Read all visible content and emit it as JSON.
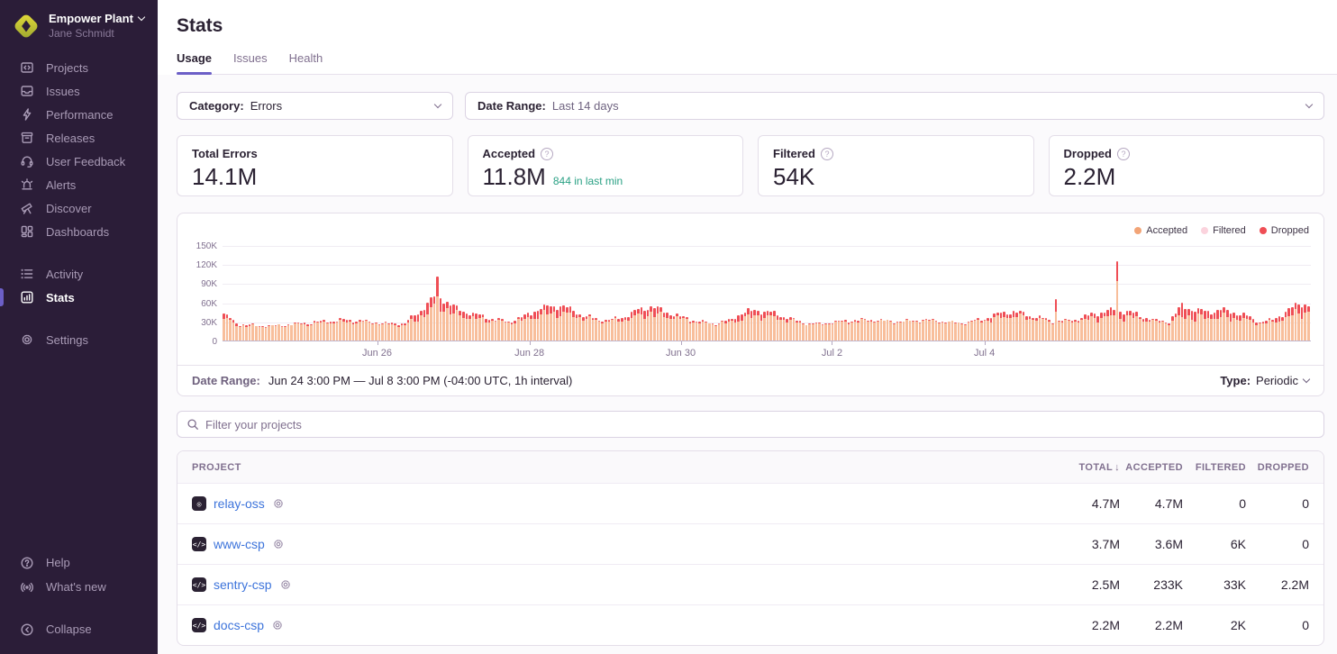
{
  "sidebar": {
    "org_name": "Empower Plant",
    "org_user": "Jane Schmidt",
    "main_items": [
      {
        "label": "Projects",
        "icon": "projects-icon"
      },
      {
        "label": "Issues",
        "icon": "issues-icon"
      },
      {
        "label": "Performance",
        "icon": "performance-icon"
      },
      {
        "label": "Releases",
        "icon": "releases-icon"
      },
      {
        "label": "User Feedback",
        "icon": "user-feedback-icon"
      },
      {
        "label": "Alerts",
        "icon": "alerts-icon"
      },
      {
        "label": "Discover",
        "icon": "discover-icon"
      },
      {
        "label": "Dashboards",
        "icon": "dashboards-icon"
      }
    ],
    "secondary_items": [
      {
        "label": "Activity",
        "icon": "activity-icon"
      },
      {
        "label": "Stats",
        "icon": "stats-icon",
        "active": true
      }
    ],
    "settings_items": [
      {
        "label": "Settings",
        "icon": "settings-icon"
      }
    ],
    "footer_items": [
      {
        "label": "Help",
        "icon": "help-icon"
      },
      {
        "label": "What's new",
        "icon": "whats-new-icon"
      }
    ],
    "collapse_label": "Collapse"
  },
  "header": {
    "title": "Stats",
    "tabs": [
      {
        "label": "Usage",
        "active": true
      },
      {
        "label": "Issues",
        "active": false
      },
      {
        "label": "Health",
        "active": false
      }
    ]
  },
  "filters": {
    "category_label": "Category:",
    "category_value": "Errors",
    "daterange_label": "Date Range:",
    "daterange_value": "Last 14 days"
  },
  "cards": [
    {
      "label": "Total Errors",
      "value": "14.1M",
      "help": false,
      "sub": ""
    },
    {
      "label": "Accepted",
      "value": "11.8M",
      "help": true,
      "sub": "844 in last min"
    },
    {
      "label": "Filtered",
      "value": "54K",
      "help": true,
      "sub": ""
    },
    {
      "label": "Dropped",
      "value": "2.2M",
      "help": true,
      "sub": ""
    }
  ],
  "chart_data": {
    "type": "bar",
    "subtype": "stacked-hourly-time-series",
    "x_range": "Jun 24 3:00 PM — Jul 8 3:00 PM, 1h interval (336 bars)",
    "ylim": [
      0,
      150000
    ],
    "y_ticks": [
      "150K",
      "120K",
      "90K",
      "60K",
      "30K",
      "0"
    ],
    "x_ticks": [
      {
        "label": "Jun 26",
        "pos": 0.142
      },
      {
        "label": "Jun 28",
        "pos": 0.282
      },
      {
        "label": "Jun 30",
        "pos": 0.421
      },
      {
        "label": "Jul 2",
        "pos": 0.56
      },
      {
        "label": "Jul 4",
        "pos": 0.7
      }
    ],
    "legend": [
      {
        "label": "Accepted",
        "color": "#F2A477"
      },
      {
        "label": "Filtered",
        "color": "#FBD3DD"
      },
      {
        "label": "Dropped",
        "color": "#EF4E55"
      }
    ],
    "series_colors": {
      "accepted": "#F8BE9B",
      "dropped": "#EF4E55"
    },
    "units": "thousands of events per hour",
    "keyframes_hour_total_dropped": [
      [
        0,
        42,
        6
      ],
      [
        4,
        27,
        3
      ],
      [
        8,
        24,
        2
      ],
      [
        14,
        23,
        1
      ],
      [
        20,
        25,
        1
      ],
      [
        26,
        28,
        2
      ],
      [
        32,
        31,
        3
      ],
      [
        38,
        32,
        3
      ],
      [
        44,
        30,
        2
      ],
      [
        50,
        27,
        2
      ],
      [
        56,
        27,
        3
      ],
      [
        60,
        44,
        10
      ],
      [
        63,
        58,
        14
      ],
      [
        66,
        74,
        18
      ],
      [
        69,
        60,
        13
      ],
      [
        72,
        50,
        10
      ],
      [
        76,
        43,
        7
      ],
      [
        80,
        38,
        5
      ],
      [
        84,
        33,
        3
      ],
      [
        88,
        30,
        2
      ],
      [
        92,
        36,
        5
      ],
      [
        96,
        47,
        10
      ],
      [
        100,
        53,
        11
      ],
      [
        104,
        55,
        12
      ],
      [
        108,
        47,
        8
      ],
      [
        112,
        38,
        4
      ],
      [
        116,
        33,
        2
      ],
      [
        120,
        33,
        3
      ],
      [
        124,
        38,
        5
      ],
      [
        128,
        48,
        10
      ],
      [
        132,
        54,
        12
      ],
      [
        136,
        46,
        8
      ],
      [
        140,
        39,
        4
      ],
      [
        144,
        33,
        2
      ],
      [
        148,
        29,
        2
      ],
      [
        152,
        27,
        1
      ],
      [
        156,
        31,
        3
      ],
      [
        160,
        43,
        9
      ],
      [
        164,
        48,
        10
      ],
      [
        168,
        45,
        8
      ],
      [
        172,
        40,
        6
      ],
      [
        176,
        33,
        3
      ],
      [
        180,
        27,
        1
      ],
      [
        184,
        26,
        1
      ],
      [
        188,
        29,
        1
      ],
      [
        192,
        31,
        2
      ],
      [
        196,
        32,
        2
      ],
      [
        200,
        33,
        2
      ],
      [
        204,
        31,
        1
      ],
      [
        208,
        30,
        1
      ],
      [
        212,
        31,
        1
      ],
      [
        216,
        33,
        2
      ],
      [
        220,
        31,
        1
      ],
      [
        224,
        29,
        1
      ],
      [
        228,
        28,
        1
      ],
      [
        232,
        31,
        2
      ],
      [
        236,
        36,
        4
      ],
      [
        240,
        43,
        7
      ],
      [
        244,
        46,
        8
      ],
      [
        248,
        41,
        5
      ],
      [
        252,
        36,
        3
      ],
      [
        256,
        31,
        2
      ],
      [
        260,
        31,
        2
      ],
      [
        264,
        34,
        3
      ],
      [
        268,
        41,
        7
      ],
      [
        272,
        46,
        9
      ],
      [
        276,
        48,
        10
      ],
      [
        280,
        45,
        8
      ],
      [
        284,
        37,
        4
      ],
      [
        288,
        31,
        2
      ],
      [
        292,
        30,
        2
      ],
      [
        296,
        55,
        17
      ],
      [
        300,
        48,
        12
      ],
      [
        304,
        45,
        10
      ],
      [
        308,
        48,
        11
      ],
      [
        312,
        44,
        9
      ],
      [
        316,
        38,
        6
      ],
      [
        320,
        29,
        2
      ],
      [
        324,
        33,
        4
      ],
      [
        328,
        45,
        10
      ],
      [
        332,
        58,
        14
      ],
      [
        336,
        56,
        12
      ]
    ],
    "spikes_hour_total_dropped": [
      [
        66,
        100,
        30
      ],
      [
        257,
        65,
        20
      ],
      [
        276,
        125,
        32
      ]
    ]
  },
  "chart_footer": {
    "label": "Date Range:",
    "value": "Jun 24 3:00 PM — Jul 8 3:00 PM (-04:00 UTC, 1h interval)",
    "type_label": "Type:",
    "type_value": "Periodic"
  },
  "search": {
    "placeholder": "Filter your projects"
  },
  "table": {
    "columns": {
      "project": "PROJECT",
      "total": "TOTAL",
      "accepted": "ACCEPTED",
      "filtered": "FILTERED",
      "dropped": "DROPPED"
    },
    "sort_arrow": "↓",
    "rows": [
      {
        "name": "relay-oss",
        "avatar": "relay",
        "total": "4.7M",
        "accepted": "4.7M",
        "filtered": "0",
        "dropped": "0"
      },
      {
        "name": "www-csp",
        "avatar": "csp",
        "total": "3.7M",
        "accepted": "3.6M",
        "filtered": "6K",
        "dropped": "0"
      },
      {
        "name": "sentry-csp",
        "avatar": "csp",
        "total": "2.5M",
        "accepted": "233K",
        "filtered": "33K",
        "dropped": "2.2M"
      },
      {
        "name": "docs-csp",
        "avatar": "csp",
        "total": "2.2M",
        "accepted": "2.2M",
        "filtered": "2K",
        "dropped": "0"
      }
    ]
  },
  "colors": {
    "sidebar_bg": "#2B1D38",
    "accent_purple": "#6C5FC7",
    "link_blue": "#3D74DB",
    "success_green": "#2BA185",
    "bar_accepted": "#F8BE9B",
    "bar_dropped": "#EF4E55"
  }
}
